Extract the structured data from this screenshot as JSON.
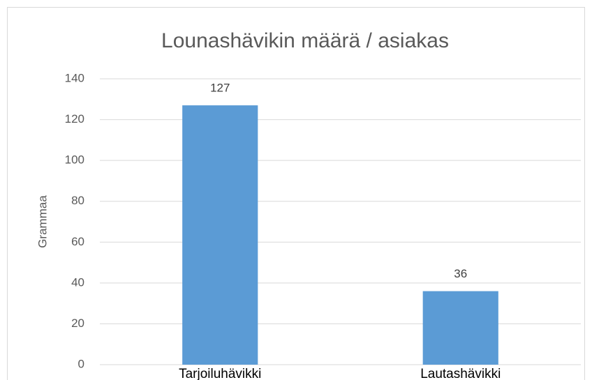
{
  "chart_data": {
    "type": "bar",
    "title": "Lounashävikin määrä / asiakas",
    "y_label": "Grammaa",
    "categories": [
      "Tarjoiluhävikki",
      "Lautashävikki"
    ],
    "values": [
      127,
      36
    ],
    "color": "#5b9bd5",
    "ylim": [
      0,
      140
    ],
    "yticks": [
      0,
      20,
      40,
      60,
      80,
      100,
      120,
      140
    ],
    "grid": true
  }
}
